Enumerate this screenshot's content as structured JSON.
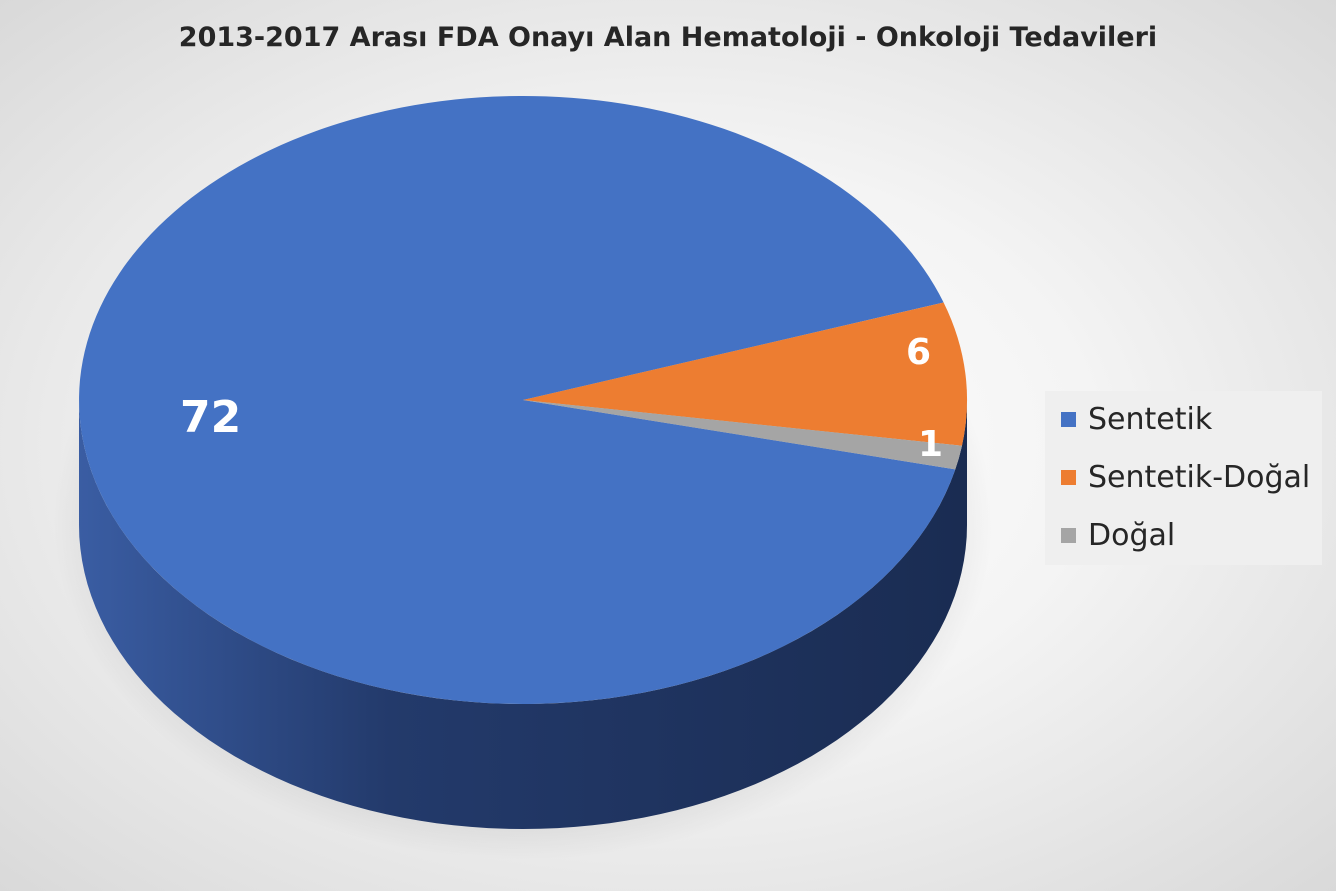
{
  "title": "2013-2017 Arası FDA Onayı Alan Hematoloji - Onkoloji Tedavileri",
  "chart_data": {
    "type": "pie",
    "title": "2013-2017 Arası FDA Onayı Alan Hematoloji - Onkoloji Tedavileri",
    "categories": [
      "Sentetik",
      "Sentetik-Doğal",
      "Doğal"
    ],
    "values": [
      72,
      6,
      1
    ],
    "data_labels": [
      "72",
      "6",
      "1"
    ],
    "colors": [
      "#4472C4",
      "#ED7D31",
      "#A5A5A5"
    ],
    "style": "3d",
    "legend_position": "right"
  },
  "legend": {
    "items": [
      {
        "label": "Sentetik",
        "color": "#4472C4"
      },
      {
        "label": "Sentetik-Doğal",
        "color": "#ED7D31"
      },
      {
        "label": "Doğal",
        "color": "#A5A5A5"
      }
    ]
  }
}
